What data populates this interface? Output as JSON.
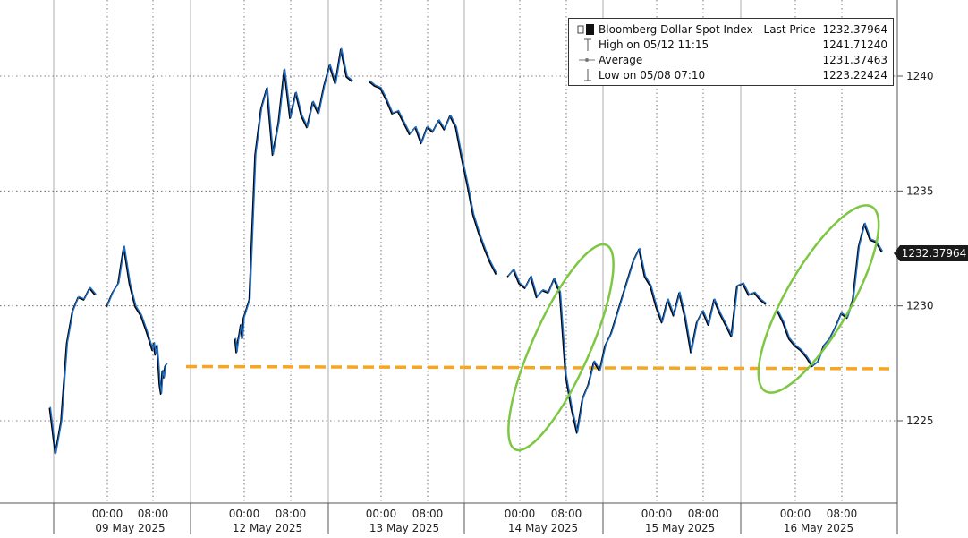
{
  "chart_data": {
    "type": "line",
    "series": [
      {
        "name": "Bloomberg Dollar Spot Index - Last Price",
        "points": [
          [
            "2025-05-08T14:00",
            1225.6
          ],
          [
            "2025-05-08T15:00",
            1223.6
          ],
          [
            "2025-05-08T16:00",
            1225.0
          ],
          [
            "2025-05-08T17:00",
            1228.4
          ],
          [
            "2025-05-08T18:00",
            1229.8
          ],
          [
            "2025-05-08T19:00",
            1230.4
          ],
          [
            "2025-05-08T20:00",
            1230.3
          ],
          [
            "2025-05-08T21:00",
            1230.8
          ],
          [
            "2025-05-08T22:00",
            1230.5
          ],
          [
            "2025-05-09T00:00",
            1230.0
          ],
          [
            "2025-05-09T01:00",
            1230.6
          ],
          [
            "2025-05-09T02:00",
            1231.0
          ],
          [
            "2025-05-09T03:00",
            1232.6
          ],
          [
            "2025-05-09T04:00",
            1231.0
          ],
          [
            "2025-05-09T05:00",
            1230.0
          ],
          [
            "2025-05-09T06:00",
            1229.6
          ],
          [
            "2025-05-09T07:00",
            1228.9
          ],
          [
            "2025-05-09T08:00",
            1228.1
          ],
          [
            "2025-05-09T09:00",
            1228.4
          ],
          [
            "2025-05-09T10:00",
            1227.9
          ],
          [
            "2025-05-09T11:00",
            1228.3
          ],
          [
            "2025-05-09T12:00",
            1227.6
          ],
          [
            "2025-05-09T13:00",
            1226.6
          ],
          [
            "2025-05-09T14:00",
            1226.2
          ],
          [
            "2025-05-09T15:00",
            1227.2
          ],
          [
            "2025-05-09T16:00",
            1226.9
          ],
          [
            "2025-05-09T17:00",
            1227.4
          ],
          [
            "2025-05-09T18:00",
            1227.5
          ],
          [
            "2025-05-11T18:00",
            1228.6
          ],
          [
            "2025-05-11T19:00",
            1228.0
          ],
          [
            "2025-05-11T20:00",
            1228.5
          ],
          [
            "2025-05-11T21:00",
            1228.8
          ],
          [
            "2025-05-11T22:00",
            1229.2
          ],
          [
            "2025-05-11T23:00",
            1228.6
          ],
          [
            "2025-05-12T00:00",
            1229.5
          ],
          [
            "2025-05-12T01:00",
            1230.3
          ],
          [
            "2025-05-12T02:00",
            1236.6
          ],
          [
            "2025-05-12T03:00",
            1238.6
          ],
          [
            "2025-05-12T04:00",
            1239.5
          ],
          [
            "2025-05-12T05:00",
            1236.6
          ],
          [
            "2025-05-12T06:00",
            1238.0
          ],
          [
            "2025-05-12T07:00",
            1240.3
          ],
          [
            "2025-05-12T08:00",
            1238.2
          ],
          [
            "2025-05-12T09:00",
            1239.3
          ],
          [
            "2025-05-12T10:00",
            1238.3
          ],
          [
            "2025-05-12T11:00",
            1237.8
          ],
          [
            "2025-05-12T12:00",
            1238.9
          ],
          [
            "2025-05-12T13:00",
            1238.4
          ],
          [
            "2025-05-12T14:00",
            1239.6
          ],
          [
            "2025-05-12T15:00",
            1240.5
          ],
          [
            "2025-05-12T16:00",
            1239.7
          ],
          [
            "2025-05-12T17:00",
            1241.2
          ],
          [
            "2025-05-12T18:00",
            1240.0
          ],
          [
            "2025-05-12T19:00",
            1239.8
          ],
          [
            "2025-05-12T22:00",
            1239.8
          ],
          [
            "2025-05-12T23:00",
            1239.6
          ],
          [
            "2025-05-13T00:00",
            1239.5
          ],
          [
            "2025-05-13T01:00",
            1239.0
          ],
          [
            "2025-05-13T02:00",
            1238.4
          ],
          [
            "2025-05-13T03:00",
            1238.5
          ],
          [
            "2025-05-13T04:00",
            1238.0
          ],
          [
            "2025-05-13T05:00",
            1237.5
          ],
          [
            "2025-05-13T06:00",
            1237.8
          ],
          [
            "2025-05-13T07:00",
            1237.1
          ],
          [
            "2025-05-13T08:00",
            1237.8
          ],
          [
            "2025-05-13T09:00",
            1237.6
          ],
          [
            "2025-05-13T10:00",
            1238.1
          ],
          [
            "2025-05-13T11:00",
            1237.7
          ],
          [
            "2025-05-13T12:00",
            1238.3
          ],
          [
            "2025-05-13T13:00",
            1237.8
          ],
          [
            "2025-05-13T14:00",
            1236.5
          ],
          [
            "2025-05-13T15:00",
            1235.3
          ],
          [
            "2025-05-13T16:00",
            1234.0
          ],
          [
            "2025-05-13T17:00",
            1233.2
          ],
          [
            "2025-05-13T18:00",
            1232.5
          ],
          [
            "2025-05-13T19:00",
            1231.9
          ],
          [
            "2025-05-13T20:00",
            1231.4
          ],
          [
            "2025-05-13T22:00",
            1231.3
          ],
          [
            "2025-05-13T23:00",
            1231.6
          ],
          [
            "2025-05-14T00:00",
            1231.0
          ],
          [
            "2025-05-14T01:00",
            1230.8
          ],
          [
            "2025-05-14T02:00",
            1231.3
          ],
          [
            "2025-05-14T03:00",
            1230.4
          ],
          [
            "2025-05-14T04:00",
            1230.7
          ],
          [
            "2025-05-14T05:00",
            1230.6
          ],
          [
            "2025-05-14T06:00",
            1231.2
          ],
          [
            "2025-05-14T07:00",
            1230.6
          ],
          [
            "2025-05-14T08:00",
            1227.0
          ],
          [
            "2025-05-14T09:00",
            1225.6
          ],
          [
            "2025-05-14T10:00",
            1224.5
          ],
          [
            "2025-05-14T11:00",
            1226.0
          ],
          [
            "2025-05-14T12:00",
            1226.6
          ],
          [
            "2025-05-14T13:00",
            1227.6
          ],
          [
            "2025-05-14T14:00",
            1227.2
          ],
          [
            "2025-05-14T15:00",
            1228.3
          ],
          [
            "2025-05-14T16:00",
            1228.8
          ],
          [
            "2025-05-14T17:00",
            1229.6
          ],
          [
            "2025-05-14T18:00",
            1230.4
          ],
          [
            "2025-05-14T19:00",
            1231.2
          ],
          [
            "2025-05-14T20:00",
            1232.0
          ],
          [
            "2025-05-14T21:00",
            1232.5
          ],
          [
            "2025-05-14T22:00",
            1231.3
          ],
          [
            "2025-05-14T23:00",
            1230.9
          ],
          [
            "2025-05-15T00:00",
            1230.0
          ],
          [
            "2025-05-15T01:00",
            1229.3
          ],
          [
            "2025-05-15T02:00",
            1230.3
          ],
          [
            "2025-05-15T03:00",
            1229.6
          ],
          [
            "2025-05-15T04:00",
            1230.6
          ],
          [
            "2025-05-15T05:00",
            1229.5
          ],
          [
            "2025-05-15T06:00",
            1228.0
          ],
          [
            "2025-05-15T07:00",
            1229.3
          ],
          [
            "2025-05-15T08:00",
            1229.8
          ],
          [
            "2025-05-15T09:00",
            1229.2
          ],
          [
            "2025-05-15T10:00",
            1230.3
          ],
          [
            "2025-05-15T11:00",
            1229.7
          ],
          [
            "2025-05-15T12:00",
            1229.2
          ],
          [
            "2025-05-15T13:00",
            1228.7
          ],
          [
            "2025-05-15T14:00",
            1230.9
          ],
          [
            "2025-05-15T15:00",
            1231.0
          ],
          [
            "2025-05-15T16:00",
            1230.5
          ],
          [
            "2025-05-15T17:00",
            1230.6
          ],
          [
            "2025-05-15T18:00",
            1230.3
          ],
          [
            "2025-05-15T19:00",
            1230.1
          ],
          [
            "2025-05-15T21:00",
            1229.8
          ],
          [
            "2025-05-15T22:00",
            1229.3
          ],
          [
            "2025-05-15T23:00",
            1228.6
          ],
          [
            "2025-05-16T00:00",
            1228.3
          ],
          [
            "2025-05-16T01:00",
            1228.1
          ],
          [
            "2025-05-16T02:00",
            1227.8
          ],
          [
            "2025-05-16T03:00",
            1227.4
          ],
          [
            "2025-05-16T04:00",
            1227.6
          ],
          [
            "2025-05-16T05:00",
            1228.3
          ],
          [
            "2025-05-16T06:00",
            1228.6
          ],
          [
            "2025-05-16T07:00",
            1229.1
          ],
          [
            "2025-05-16T08:00",
            1229.7
          ],
          [
            "2025-05-16T09:00",
            1229.5
          ],
          [
            "2025-05-16T10:00",
            1230.3
          ],
          [
            "2025-05-16T11:00",
            1232.6
          ],
          [
            "2025-05-16T12:00",
            1233.6
          ],
          [
            "2025-05-16T13:00",
            1232.9
          ],
          [
            "2025-05-16T14:00",
            1232.8
          ],
          [
            "2025-05-16T15:00",
            1232.38
          ]
        ]
      }
    ],
    "support_level": 1227.3,
    "highlight_ellipses": 2,
    "y_ticks": [
      1225,
      1230,
      1235,
      1240
    ],
    "ylim": [
      1222.5,
      1243.3
    ],
    "y_axis_side": "right",
    "x_range": [
      "2025-05-08T14:00",
      "2025-05-17T14:00"
    ],
    "x_time_ticks": [
      {
        "t": "2025-05-09T00:00",
        "label": "00:00"
      },
      {
        "t": "2025-05-09T08:00",
        "label": "08:00"
      },
      {
        "t": "2025-05-12T00:00",
        "label": "00:00"
      },
      {
        "t": "2025-05-12T08:00",
        "label": "08:00"
      },
      {
        "t": "2025-05-13T00:00",
        "label": "00:00"
      },
      {
        "t": "2025-05-13T08:00",
        "label": "08:00"
      },
      {
        "t": "2025-05-14T00:00",
        "label": "00:00"
      },
      {
        "t": "2025-05-14T08:00",
        "label": "08:00"
      },
      {
        "t": "2025-05-15T00:00",
        "label": "00:00"
      },
      {
        "t": "2025-05-15T08:00",
        "label": "08:00"
      },
      {
        "t": "2025-05-16T00:00",
        "label": "00:00"
      },
      {
        "t": "2025-05-16T08:00",
        "label": "08:00"
      }
    ],
    "x_date_labels": [
      "09 May 2025",
      "12 May 2025",
      "13 May 2025",
      "14 May 2025",
      "15 May 2025",
      "16 May 2025"
    ],
    "grid": true,
    "legend_placement": "top-right",
    "colors": {
      "price_line": "#1f6fc8",
      "shadow_line": "#000000",
      "support": "#f5a623",
      "ellipse": "#7dc742",
      "grid": "#555555"
    }
  },
  "legend": {
    "title": "Bloomberg Dollar Spot Index - Last Price",
    "title_value": "1232.37964",
    "high_label": "High on 05/12 11:15",
    "high_value": "1241.71240",
    "avg_label": "Average",
    "avg_value": "1231.37463",
    "low_label": "Low on 05/08 07:10",
    "low_value": "1223.22424"
  },
  "last_price_tag": "1232.37964"
}
